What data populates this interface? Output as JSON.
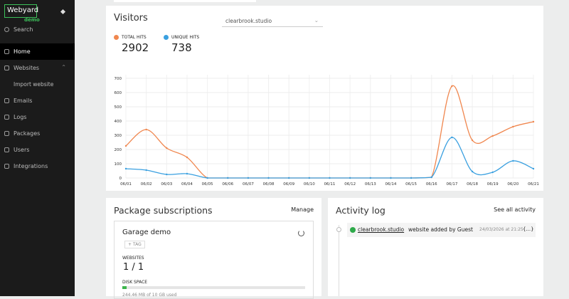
{
  "sidebar": {
    "logo": "Webyard",
    "logo_sub": "demo",
    "search": "Search",
    "nav": [
      {
        "label": "Home"
      },
      {
        "label": "Websites"
      },
      {
        "label": "Import website"
      },
      {
        "label": "Emails"
      },
      {
        "label": "Logs"
      },
      {
        "label": "Packages"
      },
      {
        "label": "Users"
      },
      {
        "label": "Integrations"
      }
    ]
  },
  "visitors": {
    "title": "Visitors",
    "site_select": "clearbrook.studio",
    "stats": [
      {
        "label": "TOTAL HITS",
        "value": "2902"
      },
      {
        "label": "UNIQUE HITS",
        "value": "738"
      }
    ]
  },
  "chart_data": {
    "type": "line",
    "categories": [
      "06/01",
      "06/02",
      "06/03",
      "06/04",
      "06/05",
      "06/06",
      "06/07",
      "06/08",
      "06/09",
      "06/10",
      "06/11",
      "06/12",
      "06/13",
      "06/14",
      "06/15",
      "06/16",
      "06/17",
      "06/18",
      "06/19",
      "06/20",
      "06/21"
    ],
    "series": [
      {
        "name": "TOTAL HITS",
        "color": "#f0874f",
        "values": [
          225,
          340,
          210,
          145,
          0,
          0,
          0,
          0,
          0,
          0,
          0,
          0,
          0,
          0,
          0,
          5,
          645,
          265,
          295,
          360,
          395
        ]
      },
      {
        "name": "UNIQUE HITS",
        "color": "#3aa0e0",
        "values": [
          65,
          55,
          25,
          30,
          0,
          0,
          0,
          0,
          0,
          0,
          0,
          0,
          0,
          0,
          0,
          5,
          285,
          45,
          40,
          120,
          65
        ]
      }
    ],
    "ylim": [
      0,
      700
    ],
    "yticks": [
      0,
      100,
      200,
      300,
      400,
      500,
      600,
      700
    ],
    "grid": true
  },
  "packages": {
    "title": "Package subscriptions",
    "action": "Manage",
    "name": "Garage demo",
    "tag": "+ TAG",
    "websites_label": "WEBSITES",
    "websites_value": "1 / 1",
    "disk_label": "DISK SPACE",
    "disk_text": "244.46 MB of 10 GB used"
  },
  "activity": {
    "title": "Activity log",
    "action": "See all activity",
    "entries": [
      {
        "site": "clearbrook.studio",
        "text": "website added by Guest",
        "time": "24/03/2026 at 21:25",
        "details": "{...}"
      }
    ]
  }
}
